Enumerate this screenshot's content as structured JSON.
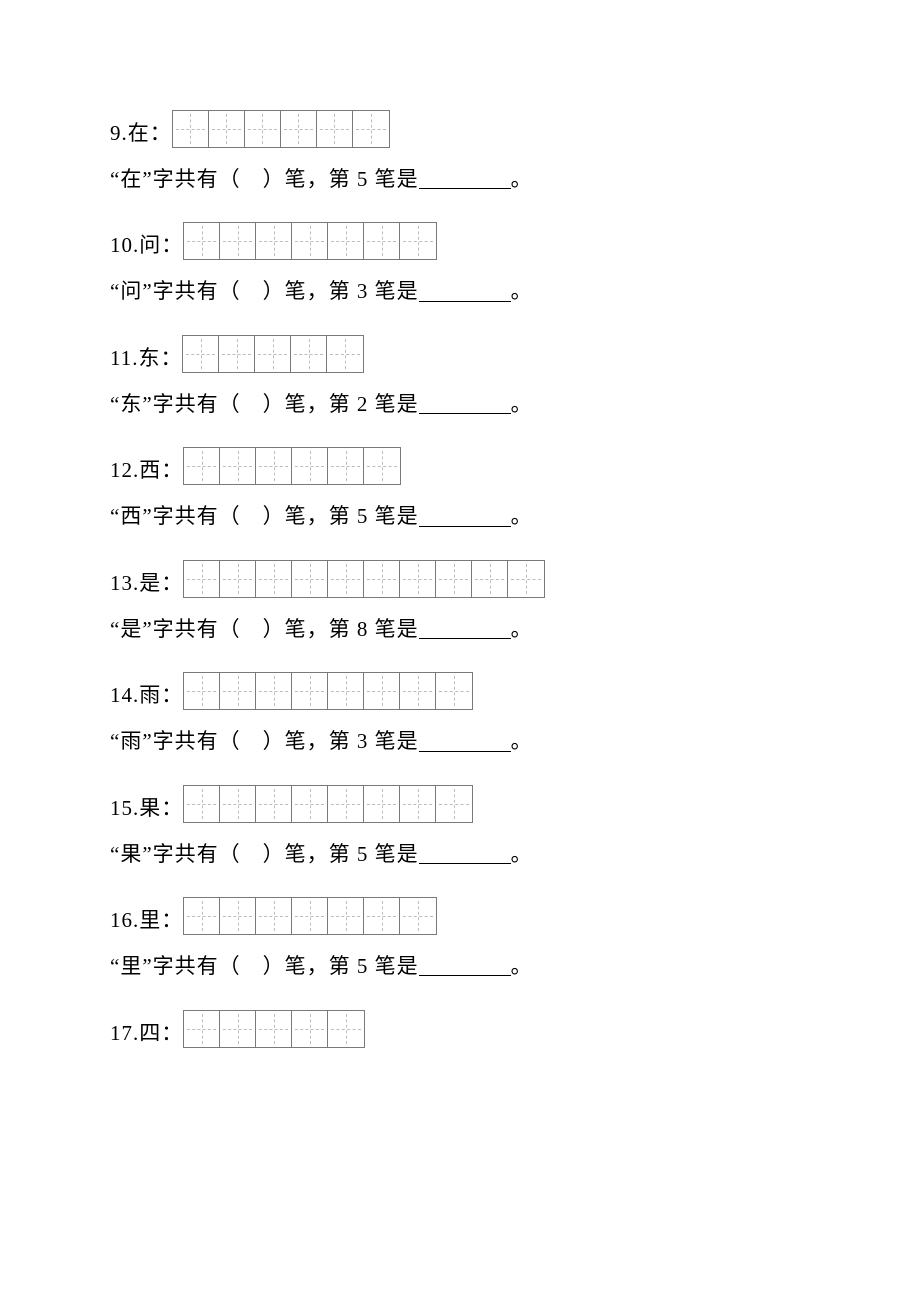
{
  "page": {
    "background_color": "#ffffff",
    "text_color": "#000000",
    "font_family": "SimSun",
    "base_fontsize": 21,
    "grid": {
      "cell_size": 36,
      "border_color": "#7a7a7a",
      "border_width": 1.5,
      "guide_color": "#bdbdbd",
      "guide_style": "dashed"
    },
    "blank": {
      "width": 92,
      "underline_color": "#000000"
    }
  },
  "items": [
    {
      "num": "9.",
      "char": "在",
      "cells": 6,
      "sentence_pre": "“在”字共有（　）笔，第 5 笔是",
      "sentence_post": "。"
    },
    {
      "num": "10.",
      "char": "问",
      "cells": 7,
      "sentence_pre": "“问”字共有（　）笔，第 3 笔是",
      "sentence_post": "。"
    },
    {
      "num": "11.",
      "char": "东",
      "cells": 5,
      "sentence_pre": "“东”字共有（　）笔，第 2 笔是",
      "sentence_post": "。"
    },
    {
      "num": "12.",
      "char": "西",
      "cells": 6,
      "sentence_pre": "“西”字共有（　）笔，第 5 笔是",
      "sentence_post": "。"
    },
    {
      "num": "13.",
      "char": "是",
      "cells": 10,
      "sentence_pre": "“是”字共有（　）笔，第 8 笔是",
      "sentence_post": "。"
    },
    {
      "num": "14.",
      "char": "雨",
      "cells": 8,
      "sentence_pre": "“雨”字共有（　）笔，第 3 笔是",
      "sentence_post": "。"
    },
    {
      "num": "15.",
      "char": "果",
      "cells": 8,
      "sentence_pre": "“果”字共有（　）笔，第 5 笔是",
      "sentence_post": "。"
    },
    {
      "num": "16.",
      "char": "里",
      "cells": 7,
      "sentence_pre": "“里”字共有（　）笔，第 5 笔是",
      "sentence_post": "。"
    },
    {
      "num": "17.",
      "char": "四",
      "cells": 5,
      "sentence_pre": "",
      "sentence_post": ""
    }
  ]
}
